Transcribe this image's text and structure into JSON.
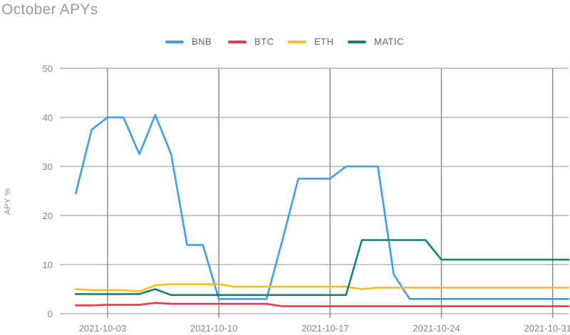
{
  "chart_data": {
    "type": "line",
    "title": "October APYs",
    "xlabel": "",
    "ylabel": "APY %",
    "ylim": [
      0,
      50
    ],
    "yticks": [
      0,
      10,
      20,
      30,
      40,
      50
    ],
    "x_start": "2021-09-30",
    "x_end": "2021-11-01",
    "xticks": [
      "2021-10-03",
      "2021-10-10",
      "2021-10-17",
      "2021-10-24",
      "2021-10-31"
    ],
    "grid": true,
    "legend_position": "top",
    "series": [
      {
        "name": "BNB",
        "color": "#3d9df3",
        "points": [
          [
            "2021-10-01",
            24.5
          ],
          [
            "2021-10-02",
            37.5
          ],
          [
            "2021-10-03",
            40
          ],
          [
            "2021-10-04",
            40
          ],
          [
            "2021-10-05",
            32.5
          ],
          [
            "2021-10-06",
            40.5
          ],
          [
            "2021-10-07",
            32.5
          ],
          [
            "2021-10-08",
            14
          ],
          [
            "2021-10-09",
            14
          ],
          [
            "2021-10-10",
            3
          ],
          [
            "2021-10-11",
            3
          ],
          [
            "2021-10-12",
            3
          ],
          [
            "2021-10-13",
            3
          ],
          [
            "2021-10-14",
            15
          ],
          [
            "2021-10-15",
            27.5
          ],
          [
            "2021-10-16",
            27.5
          ],
          [
            "2021-10-17",
            27.5
          ],
          [
            "2021-10-18",
            30
          ],
          [
            "2021-10-19",
            30
          ],
          [
            "2021-10-20",
            30
          ],
          [
            "2021-10-21",
            8
          ],
          [
            "2021-10-22",
            3
          ],
          [
            "2021-10-23",
            3
          ],
          [
            "2021-10-24",
            3
          ],
          [
            "2021-10-25",
            3
          ],
          [
            "2021-10-26",
            3
          ],
          [
            "2021-10-27",
            3
          ],
          [
            "2021-10-28",
            3
          ],
          [
            "2021-10-29",
            3
          ],
          [
            "2021-10-30",
            3
          ],
          [
            "2021-10-31",
            3
          ],
          [
            "2021-11-01",
            3
          ]
        ]
      },
      {
        "name": "BTC",
        "color": "#f0364f",
        "points": [
          [
            "2021-10-01",
            1.7
          ],
          [
            "2021-10-02",
            1.7
          ],
          [
            "2021-10-03",
            1.8
          ],
          [
            "2021-10-04",
            1.8
          ],
          [
            "2021-10-05",
            1.8
          ],
          [
            "2021-10-06",
            2.2
          ],
          [
            "2021-10-07",
            2.0
          ],
          [
            "2021-10-08",
            2.0
          ],
          [
            "2021-10-09",
            2.0
          ],
          [
            "2021-10-10",
            2.0
          ],
          [
            "2021-10-11",
            2.0
          ],
          [
            "2021-10-12",
            2.0
          ],
          [
            "2021-10-13",
            2.0
          ],
          [
            "2021-10-14",
            1.5
          ],
          [
            "2021-10-15",
            1.5
          ],
          [
            "2021-10-16",
            1.5
          ],
          [
            "2021-10-17",
            1.5
          ],
          [
            "2021-10-18",
            1.5
          ],
          [
            "2021-10-19",
            1.5
          ],
          [
            "2021-10-20",
            1.5
          ],
          [
            "2021-10-21",
            1.5
          ],
          [
            "2021-10-22",
            1.5
          ],
          [
            "2021-10-23",
            1.5
          ],
          [
            "2021-10-24",
            1.5
          ],
          [
            "2021-10-25",
            1.5
          ],
          [
            "2021-10-26",
            1.5
          ],
          [
            "2021-10-27",
            1.5
          ],
          [
            "2021-10-28",
            1.5
          ],
          [
            "2021-10-29",
            1.5
          ],
          [
            "2021-10-30",
            1.5
          ],
          [
            "2021-10-31",
            1.5
          ],
          [
            "2021-11-01",
            1.5
          ]
        ]
      },
      {
        "name": "ETH",
        "color": "#f7bf1a",
        "points": [
          [
            "2021-10-01",
            5.0
          ],
          [
            "2021-10-02",
            4.8
          ],
          [
            "2021-10-03",
            4.8
          ],
          [
            "2021-10-04",
            4.8
          ],
          [
            "2021-10-05",
            4.5
          ],
          [
            "2021-10-06",
            5.8
          ],
          [
            "2021-10-07",
            6.0
          ],
          [
            "2021-10-08",
            6.0
          ],
          [
            "2021-10-09",
            6.0
          ],
          [
            "2021-10-10",
            6.0
          ],
          [
            "2021-10-11",
            5.5
          ],
          [
            "2021-10-12",
            5.5
          ],
          [
            "2021-10-13",
            5.5
          ],
          [
            "2021-10-14",
            5.5
          ],
          [
            "2021-10-15",
            5.5
          ],
          [
            "2021-10-16",
            5.5
          ],
          [
            "2021-10-17",
            5.5
          ],
          [
            "2021-10-18",
            5.5
          ],
          [
            "2021-10-19",
            5.0
          ],
          [
            "2021-10-20",
            5.3
          ],
          [
            "2021-10-21",
            5.3
          ],
          [
            "2021-10-22",
            5.3
          ],
          [
            "2021-10-23",
            5.3
          ],
          [
            "2021-10-24",
            5.3
          ],
          [
            "2021-10-25",
            5.3
          ],
          [
            "2021-10-26",
            5.3
          ],
          [
            "2021-10-27",
            5.3
          ],
          [
            "2021-10-28",
            5.3
          ],
          [
            "2021-10-29",
            5.3
          ],
          [
            "2021-10-30",
            5.3
          ],
          [
            "2021-10-31",
            5.3
          ],
          [
            "2021-11-01",
            5.3
          ]
        ]
      },
      {
        "name": "MATIC",
        "color": "#128277",
        "points": [
          [
            "2021-10-01",
            4.0
          ],
          [
            "2021-10-02",
            4.0
          ],
          [
            "2021-10-03",
            4.0
          ],
          [
            "2021-10-04",
            4.0
          ],
          [
            "2021-10-05",
            4.0
          ],
          [
            "2021-10-06",
            5.0
          ],
          [
            "2021-10-07",
            3.8
          ],
          [
            "2021-10-08",
            3.8
          ],
          [
            "2021-10-09",
            3.8
          ],
          [
            "2021-10-10",
            3.8
          ],
          [
            "2021-10-11",
            3.8
          ],
          [
            "2021-10-12",
            3.8
          ],
          [
            "2021-10-13",
            3.8
          ],
          [
            "2021-10-14",
            3.8
          ],
          [
            "2021-10-15",
            3.8
          ],
          [
            "2021-10-16",
            3.8
          ],
          [
            "2021-10-17",
            3.8
          ],
          [
            "2021-10-18",
            3.8
          ],
          [
            "2021-10-19",
            15.0
          ],
          [
            "2021-10-20",
            15.0
          ],
          [
            "2021-10-21",
            15.0
          ],
          [
            "2021-10-22",
            15.0
          ],
          [
            "2021-10-23",
            15.0
          ],
          [
            "2021-10-24",
            11.0
          ],
          [
            "2021-10-25",
            11.0
          ],
          [
            "2021-10-26",
            11.0
          ],
          [
            "2021-10-27",
            11.0
          ],
          [
            "2021-10-28",
            11.0
          ],
          [
            "2021-10-29",
            11.0
          ],
          [
            "2021-10-30",
            11.0
          ],
          [
            "2021-10-31",
            11.0
          ],
          [
            "2021-11-01",
            11.0
          ]
        ]
      }
    ]
  }
}
